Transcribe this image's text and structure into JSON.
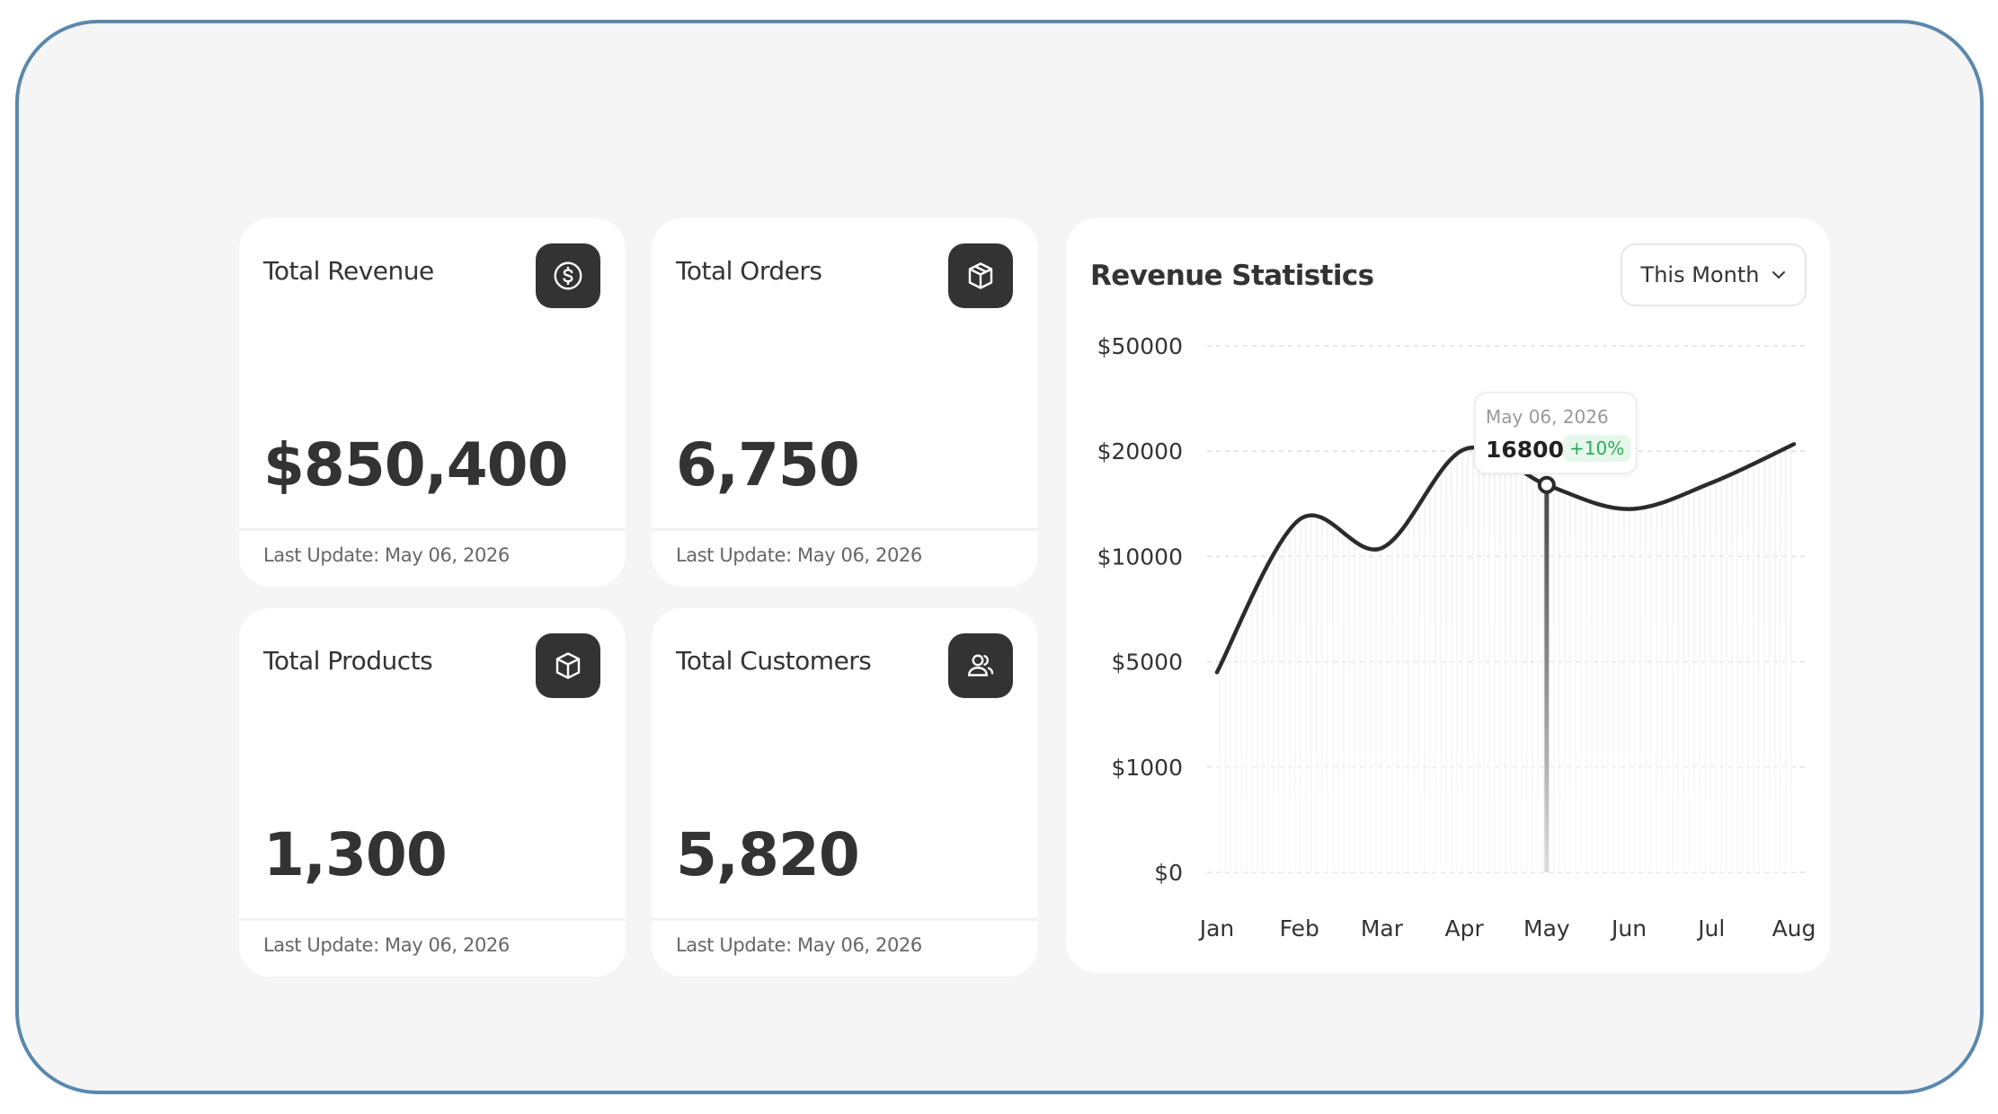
{
  "cards": [
    {
      "title": "Total Revenue",
      "value": "$850,400",
      "updated": "Last Update: May 06, 2026",
      "icon": "dollar-circle-icon"
    },
    {
      "title": "Total Orders",
      "value": "6,750",
      "updated": "Last Update: May 06, 2026",
      "icon": "box-icon"
    },
    {
      "title": "Total Products",
      "value": "1,300",
      "updated": "Last Update: May 06, 2026",
      "icon": "box-icon"
    },
    {
      "title": "Total Customers",
      "value": "5,820",
      "updated": "Last Update: May 06, 2026",
      "icon": "users-icon"
    }
  ],
  "revenue": {
    "title": "Revenue Statistics",
    "period": "This Month",
    "tooltip": {
      "date": "May 06, 2026",
      "value": "16800",
      "change": "+10%"
    }
  },
  "colors": {
    "frame_border": "#5b88ad",
    "background": "#f5f5f5",
    "card": "#ffffff",
    "icon_bg": "#333333",
    "line": "#2b2b2b",
    "badge_text": "#2eaa5a",
    "badge_bg": "#e6f7ec"
  },
  "chart_data": {
    "type": "line",
    "title": "Revenue Statistics",
    "y_ticks": [
      "$50000",
      "$20000",
      "$10000",
      "$5000",
      "$1000",
      "$0"
    ],
    "y_tick_values": [
      50000,
      20000,
      10000,
      5000,
      1000,
      0
    ],
    "y_scale": "categorical-steps",
    "categories": [
      "Jan",
      "Feb",
      "Mar",
      "Apr",
      "May",
      "Jun",
      "Jul",
      "Aug"
    ],
    "series": [
      {
        "values": [
          4600,
          13500,
          10800,
          20500,
          16800,
          14500,
          17000,
          22000
        ]
      }
    ],
    "highlight": {
      "category": "May",
      "value": 16800,
      "change": "+10%"
    },
    "grid": true,
    "legend": "none"
  }
}
